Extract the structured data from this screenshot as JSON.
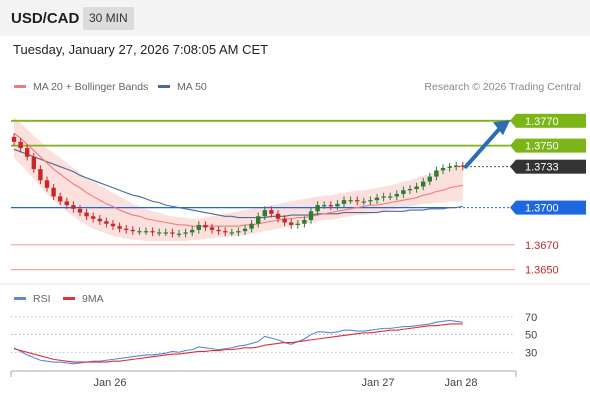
{
  "header": {
    "pair": "USD/CAD",
    "timeframe": "30 MIN",
    "datetime": "Tuesday, January 27, 2026 7:08:05 AM CET"
  },
  "colors": {
    "candle_up": "#2e7d32",
    "candle_down": "#c62828",
    "ma20": "#f07b7b",
    "bollinger_fill": "#fbd6d3",
    "ma50": "#4a6a9a",
    "resistance": "#7cb518",
    "support": "#1e67e0",
    "target": "#f5a3a3",
    "price_label": "#333333",
    "arrow": "#2c6db2",
    "rsi": "#5b87d6",
    "rsi_ma": "#e03030"
  },
  "chart_data": [
    {
      "type": "candlestick",
      "title": "USD/CAD",
      "legend": [
        {
          "name": "MA 20 + Bollinger Bands",
          "color": "#f07b7b"
        },
        {
          "name": "MA 50",
          "color": "#4a6a9a"
        }
      ],
      "legend_position": "top-left",
      "source": "Research © 2026 Trading Central",
      "x_ticks": [
        "Jan 26",
        "Jan 27",
        "Jan 28"
      ],
      "y_range": [
        1.364,
        1.379
      ],
      "grid": false,
      "levels": [
        {
          "label": "1.3770",
          "value": 1.377,
          "kind": "resistance"
        },
        {
          "label": "1.3750",
          "value": 1.375,
          "kind": "resistance"
        },
        {
          "label": "1.3733",
          "value": 1.3733,
          "kind": "last"
        },
        {
          "label": "1.3700",
          "value": 1.37,
          "kind": "support"
        },
        {
          "label": "1.3670",
          "value": 1.367,
          "kind": "target"
        },
        {
          "label": "1.3650",
          "value": 1.365,
          "kind": "target"
        }
      ],
      "closes": [
        1.3753,
        1.3748,
        1.3741,
        1.3731,
        1.3722,
        1.3716,
        1.3709,
        1.3705,
        1.3702,
        1.3699,
        1.3696,
        1.3693,
        1.3691,
        1.3689,
        1.3687,
        1.3685,
        1.3683,
        1.3682,
        1.3681,
        1.3681,
        1.3681,
        1.368,
        1.368,
        1.368,
        1.3679,
        1.3679,
        1.368,
        1.3682,
        1.3686,
        1.3684,
        1.3682,
        1.3681,
        1.368,
        1.368,
        1.3681,
        1.3683,
        1.3687,
        1.3693,
        1.3698,
        1.3695,
        1.3691,
        1.3688,
        1.3686,
        1.3687,
        1.369,
        1.3697,
        1.3702,
        1.3702,
        1.3701,
        1.3703,
        1.3706,
        1.3706,
        1.3705,
        1.3705,
        1.3706,
        1.3708,
        1.3709,
        1.3709,
        1.3711,
        1.3714,
        1.3715,
        1.3717,
        1.3721,
        1.3725,
        1.373,
        1.3732,
        1.3733,
        1.3734,
        1.3733
      ],
      "ma20": [
        1.376,
        1.3756,
        1.3751,
        1.3746,
        1.3741,
        1.3736,
        1.3731,
        1.3727,
        1.3723,
        1.3719,
        1.3716,
        1.3712,
        1.3709,
        1.3706,
        1.3703,
        1.3701,
        1.3698,
        1.3696,
        1.3694,
        1.3693,
        1.3691,
        1.369,
        1.3689,
        1.3688,
        1.3687,
        1.3686,
        1.3686,
        1.3685,
        1.3685,
        1.3685,
        1.3685,
        1.3685,
        1.3685,
        1.3685,
        1.3685,
        1.3686,
        1.3686,
        1.3687,
        1.3688,
        1.3689,
        1.369,
        1.3691,
        1.3691,
        1.3692,
        1.3692,
        1.3693,
        1.3694,
        1.3695,
        1.3696,
        1.3697,
        1.3698,
        1.3699,
        1.37,
        1.3701,
        1.3702,
        1.3702,
        1.3703,
        1.3704,
        1.3705,
        1.3706,
        1.3707,
        1.3708,
        1.371,
        1.3711,
        1.3713,
        1.3714,
        1.3716,
        1.3717,
        1.3718
      ],
      "ma50": [
        1.3747,
        1.3745,
        1.3743,
        1.3741,
        1.3739,
        1.3737,
        1.3735,
        1.3733,
        1.3731,
        1.3729,
        1.3726,
        1.3724,
        1.3722,
        1.372,
        1.3718,
        1.3716,
        1.3714,
        1.3712,
        1.371,
        1.3709,
        1.3707,
        1.3705,
        1.3704,
        1.3702,
        1.3701,
        1.37,
        1.3699,
        1.3698,
        1.3697,
        1.3696,
        1.3695,
        1.3694,
        1.3693,
        1.3693,
        1.3692,
        1.3692,
        1.3692,
        1.3692,
        1.3692,
        1.3693,
        1.3693,
        1.3693,
        1.3694,
        1.3694,
        1.3694,
        1.3694,
        1.3695,
        1.3695,
        1.3695,
        1.3695,
        1.3696,
        1.3696,
        1.3696,
        1.3696,
        1.3696,
        1.3696,
        1.3697,
        1.3697,
        1.3697,
        1.3697,
        1.3698,
        1.3698,
        1.3698,
        1.3699,
        1.3699,
        1.3699,
        1.37,
        1.37,
        1.3701
      ],
      "bb_upper": [
        1.3773,
        1.3768,
        1.3763,
        1.3758,
        1.3753,
        1.3748,
        1.3744,
        1.374,
        1.3736,
        1.3732,
        1.3728,
        1.3724,
        1.3721,
        1.3718,
        1.3715,
        1.3712,
        1.3709,
        1.3706,
        1.3703,
        1.3701,
        1.3699,
        1.3697,
        1.3696,
        1.3694,
        1.3693,
        1.3692,
        1.3692,
        1.3691,
        1.3691,
        1.3692,
        1.3693,
        1.3694,
        1.3695,
        1.3696,
        1.3697,
        1.3698,
        1.3699,
        1.37,
        1.3701,
        1.3702,
        1.3703,
        1.3704,
        1.3705,
        1.3706,
        1.3707,
        1.3708,
        1.3709,
        1.371,
        1.371,
        1.3711,
        1.3712,
        1.3713,
        1.3714,
        1.3714,
        1.3715,
        1.3716,
        1.3717,
        1.3718,
        1.3719,
        1.3721,
        1.3722,
        1.3724,
        1.3726,
        1.3727,
        1.3729,
        1.3731,
        1.3732,
        1.3733,
        1.3734
      ],
      "bb_lower": [
        1.374,
        1.3735,
        1.3729,
        1.3723,
        1.3717,
        1.3711,
        1.3706,
        1.3701,
        1.3697,
        1.3693,
        1.3689,
        1.3686,
        1.3683,
        1.3681,
        1.3679,
        1.3677,
        1.3676,
        1.3675,
        1.3674,
        1.3674,
        1.3673,
        1.3673,
        1.3673,
        1.3673,
        1.3673,
        1.3673,
        1.3673,
        1.3674,
        1.3674,
        1.3675,
        1.3675,
        1.3676,
        1.3676,
        1.3677,
        1.3677,
        1.3678,
        1.3679,
        1.368,
        1.3681,
        1.3682,
        1.3683,
        1.3684,
        1.3685,
        1.3686,
        1.3687,
        1.3688,
        1.3689,
        1.369,
        1.369,
        1.3691,
        1.3692,
        1.3693,
        1.3694,
        1.3694,
        1.3695,
        1.3696,
        1.3697,
        1.3698,
        1.3699,
        1.37,
        1.3701,
        1.3702,
        1.3703,
        1.3703,
        1.3704,
        1.3704,
        1.3705,
        1.3705,
        1.3705
      ]
    },
    {
      "type": "line",
      "title": "RSI",
      "legend": [
        {
          "name": "RSI",
          "color": "#5b87d6"
        },
        {
          "name": "9MA",
          "color": "#e03030"
        }
      ],
      "y_range": [
        10,
        80
      ],
      "y_ticks": [
        70,
        50,
        30
      ],
      "grid": true,
      "series": [
        {
          "name": "RSI",
          "values": [
            35,
            31,
            27,
            24,
            21,
            20,
            19,
            19,
            18,
            17,
            18,
            19,
            20,
            20,
            21,
            22,
            23,
            24,
            25,
            26,
            27,
            27,
            28,
            29,
            31,
            30,
            32,
            33,
            36,
            35,
            34,
            33,
            34,
            35,
            37,
            38,
            40,
            42,
            48,
            46,
            44,
            41,
            39,
            42,
            45,
            50,
            53,
            53,
            52,
            53,
            55,
            55,
            54,
            54,
            55,
            56,
            57,
            57,
            58,
            59,
            59,
            60,
            61,
            62,
            64,
            65,
            66,
            65,
            64
          ]
        },
        {
          "name": "9MA",
          "values": [
            34,
            32,
            30,
            28,
            26,
            24,
            22,
            21,
            20,
            19,
            19,
            19,
            19,
            19,
            19,
            20,
            20,
            21,
            22,
            23,
            24,
            25,
            26,
            27,
            28,
            28,
            29,
            30,
            31,
            31,
            32,
            32,
            33,
            33,
            34,
            35,
            35,
            36,
            38,
            39,
            40,
            41,
            41,
            42,
            43,
            44,
            45,
            46,
            47,
            48,
            49,
            50,
            51,
            52,
            52,
            53,
            54,
            55,
            55,
            56,
            57,
            58,
            59,
            60,
            60,
            61,
            62,
            62,
            62
          ]
        }
      ]
    }
  ]
}
